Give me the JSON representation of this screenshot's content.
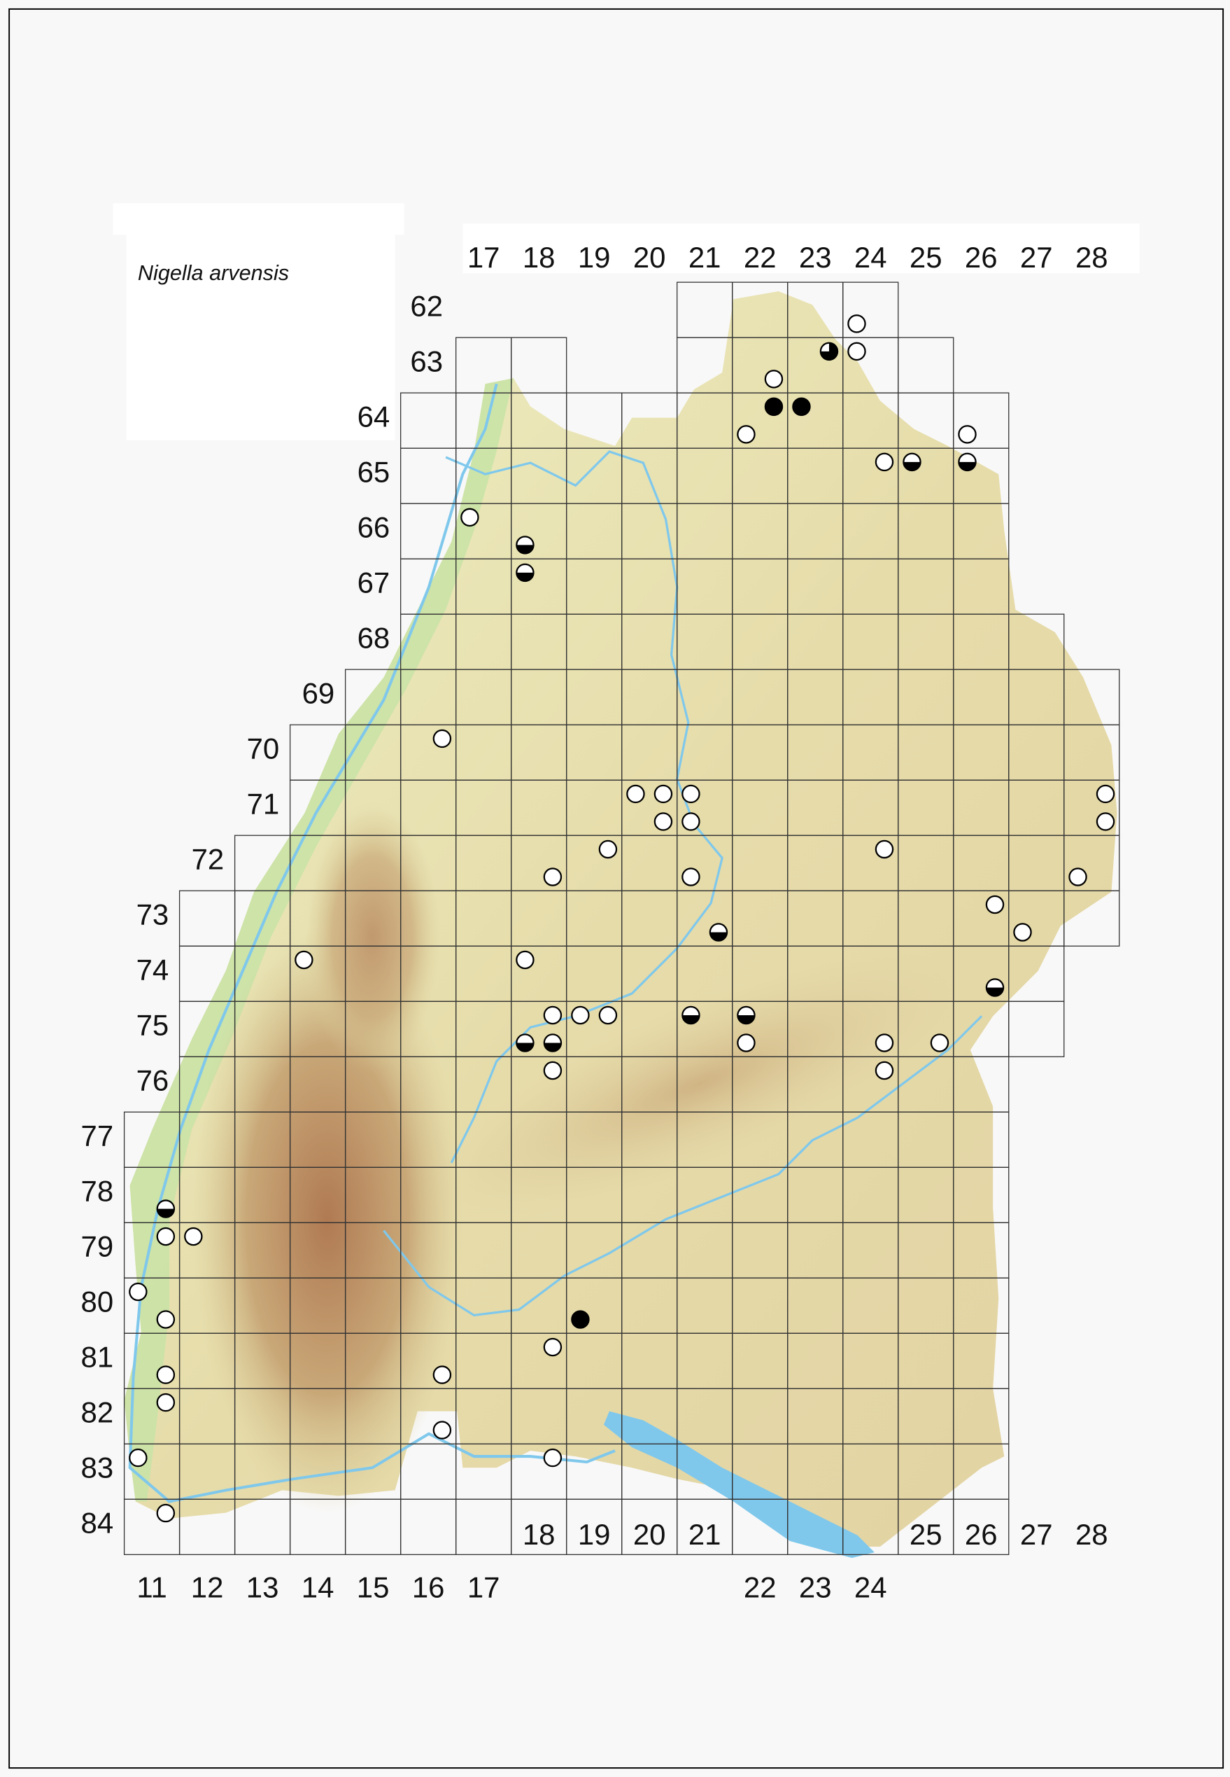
{
  "legend": {
    "species": "Nigella arvensis"
  },
  "grid": {
    "top_column_labels": [
      "17",
      "18",
      "19",
      "20",
      "21",
      "22",
      "23",
      "24",
      "25",
      "26",
      "27",
      "28"
    ],
    "row_labels": [
      "62",
      "63",
      "64",
      "65",
      "66",
      "67",
      "68",
      "69",
      "70",
      "71",
      "72",
      "73",
      "74",
      "75",
      "76",
      "77",
      "78",
      "79",
      "80",
      "81",
      "82",
      "83",
      "84"
    ],
    "bottom_column_labels_upper": [
      "18",
      "19",
      "20",
      "21",
      "25",
      "26",
      "27",
      "28"
    ],
    "bottom_column_labels_lower": [
      "11",
      "12",
      "13",
      "14",
      "15",
      "16",
      "17",
      "22",
      "23",
      "24"
    ]
  },
  "symbols": {
    "open": "open circle",
    "filled": "filled circle",
    "half": "lower half filled",
    "three_quarter": "three quarters filled"
  },
  "colors": {
    "symbol": "#000000",
    "water": "#7fc8ec",
    "lowland": "#bfe0a0",
    "upland": "#e8e2b0",
    "mountain": "#b88860"
  },
  "records": [
    {
      "cell": "6224",
      "q": 3,
      "status": "open"
    },
    {
      "cell": "6323",
      "q": 2,
      "status": "three_quarter"
    },
    {
      "cell": "6324",
      "q": 1,
      "status": "open"
    },
    {
      "cell": "6322",
      "q": 4,
      "status": "open"
    },
    {
      "cell": "6422",
      "q": 2,
      "status": "filled"
    },
    {
      "cell": "6423",
      "q": 1,
      "status": "filled"
    },
    {
      "cell": "6422",
      "q": 3,
      "status": "open"
    },
    {
      "cell": "6426",
      "q": 3,
      "status": "open"
    },
    {
      "cell": "6524",
      "q": 2,
      "status": "open"
    },
    {
      "cell": "6525",
      "q": 1,
      "status": "half"
    },
    {
      "cell": "6526",
      "q": 1,
      "status": "half"
    },
    {
      "cell": "6617",
      "q": 1,
      "status": "open"
    },
    {
      "cell": "6618",
      "q": 3,
      "status": "half"
    },
    {
      "cell": "6718",
      "q": 1,
      "status": "half"
    },
    {
      "cell": "7016",
      "q": 2,
      "status": "open"
    },
    {
      "cell": "7120",
      "q": 1,
      "status": "open"
    },
    {
      "cell": "7120",
      "q": 2,
      "status": "open"
    },
    {
      "cell": "7121",
      "q": 1,
      "status": "open"
    },
    {
      "cell": "7120",
      "q": 4,
      "status": "open"
    },
    {
      "cell": "7121",
      "q": 3,
      "status": "open"
    },
    {
      "cell": "7128",
      "q": 2,
      "status": "open"
    },
    {
      "cell": "7128",
      "q": 4,
      "status": "open"
    },
    {
      "cell": "7219",
      "q": 2,
      "status": "open"
    },
    {
      "cell": "7218",
      "q": 4,
      "status": "open"
    },
    {
      "cell": "7221",
      "q": 3,
      "status": "open"
    },
    {
      "cell": "7224",
      "q": 2,
      "status": "open"
    },
    {
      "cell": "7228",
      "q": 3,
      "status": "open"
    },
    {
      "cell": "7326",
      "q": 2,
      "status": "open"
    },
    {
      "cell": "7327",
      "q": 3,
      "status": "open"
    },
    {
      "cell": "7321",
      "q": 4,
      "status": "half"
    },
    {
      "cell": "7414",
      "q": 1,
      "status": "open"
    },
    {
      "cell": "7418",
      "q": 1,
      "status": "open"
    },
    {
      "cell": "7426",
      "q": 4,
      "status": "half"
    },
    {
      "cell": "7518",
      "q": 2,
      "status": "open"
    },
    {
      "cell": "7519",
      "q": 1,
      "status": "open"
    },
    {
      "cell": "7519",
      "q": 2,
      "status": "open"
    },
    {
      "cell": "7521",
      "q": 1,
      "status": "half"
    },
    {
      "cell": "7522",
      "q": 1,
      "status": "half"
    },
    {
      "cell": "7518",
      "q": 3,
      "status": "half"
    },
    {
      "cell": "7518",
      "q": 4,
      "status": "half"
    },
    {
      "cell": "7522",
      "q": 3,
      "status": "open"
    },
    {
      "cell": "7524",
      "q": 4,
      "status": "open"
    },
    {
      "cell": "7525",
      "q": 4,
      "status": "open"
    },
    {
      "cell": "7618",
      "q": 2,
      "status": "open"
    },
    {
      "cell": "7624",
      "q": 2,
      "status": "open"
    },
    {
      "cell": "7811",
      "q": 4,
      "status": "half"
    },
    {
      "cell": "7911",
      "q": 2,
      "status": "open"
    },
    {
      "cell": "7912",
      "q": 1,
      "status": "open"
    },
    {
      "cell": "8011",
      "q": 1,
      "status": "open"
    },
    {
      "cell": "8011",
      "q": 4,
      "status": "open"
    },
    {
      "cell": "8019",
      "q": 3,
      "status": "filled"
    },
    {
      "cell": "8118",
      "q": 2,
      "status": "open"
    },
    {
      "cell": "8111",
      "q": 4,
      "status": "open"
    },
    {
      "cell": "8116",
      "q": 4,
      "status": "open"
    },
    {
      "cell": "8211",
      "q": 2,
      "status": "open"
    },
    {
      "cell": "8216",
      "q": 4,
      "status": "open"
    },
    {
      "cell": "8311",
      "q": 1,
      "status": "open"
    },
    {
      "cell": "8318",
      "q": 2,
      "status": "open"
    },
    {
      "cell": "8411",
      "q": 2,
      "status": "open"
    }
  ]
}
